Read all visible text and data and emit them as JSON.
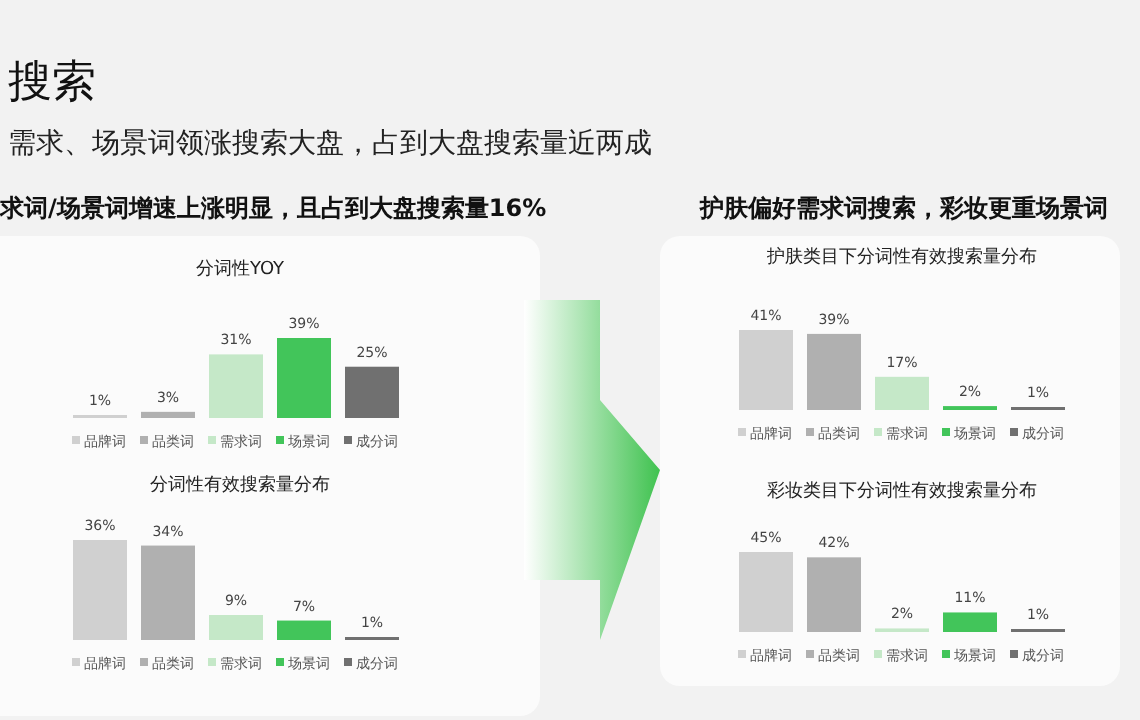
{
  "chart_data": [
    {
      "type": "other",
      "title": "搜索",
      "subtitle": "需求、场景词领涨搜索大盘，占到大盘搜索量近两成",
      "annotations": [
        "求词/场景词增速上涨明显，且占到大盘搜索量16%",
        "护肤偏好需求词搜索，彩妆更重场景词"
      ]
    },
    {
      "type": "bar",
      "title": "分词性YOY",
      "categories": [
        "品牌词",
        "品类词",
        "需求词",
        "场景词",
        "成分词"
      ],
      "values": [
        1,
        3,
        31,
        39,
        25
      ],
      "value_labels": [
        "1%",
        "3%",
        "31%",
        "39%",
        "25%"
      ],
      "colors": [
        "#d0d0d0",
        "#b0b0b0",
        "#c5e8c8",
        "#42c55a",
        "#707070"
      ]
    },
    {
      "type": "bar",
      "title": "分词性有效搜索量分布",
      "categories": [
        "品牌词",
        "品类词",
        "需求词",
        "场景词",
        "成分词"
      ],
      "values": [
        36,
        34,
        9,
        7,
        1
      ],
      "value_labels": [
        "36%",
        "34%",
        "9%",
        "7%",
        "1%"
      ],
      "colors": [
        "#d0d0d0",
        "#b0b0b0",
        "#c5e8c8",
        "#42c55a",
        "#707070"
      ]
    },
    {
      "type": "bar",
      "title": "护肤类目下分词性有效搜索量分布",
      "categories": [
        "品牌词",
        "品类词",
        "需求词",
        "场景词",
        "成分词"
      ],
      "values": [
        41,
        39,
        17,
        2,
        1
      ],
      "value_labels": [
        "41%",
        "39%",
        "17%",
        "2%",
        "1%"
      ],
      "colors": [
        "#d0d0d0",
        "#b0b0b0",
        "#c5e8c8",
        "#42c55a",
        "#707070"
      ]
    },
    {
      "type": "bar",
      "title": "彩妆类目下分词性有效搜索量分布",
      "categories": [
        "品牌词",
        "品类词",
        "需求词",
        "场景词",
        "成分词"
      ],
      "values": [
        45,
        42,
        2,
        11,
        1
      ],
      "value_labels": [
        "45%",
        "42%",
        "2%",
        "11%",
        "1%"
      ],
      "colors": [
        "#d0d0d0",
        "#b0b0b0",
        "#c5e8c8",
        "#42c55a",
        "#707070"
      ]
    }
  ]
}
